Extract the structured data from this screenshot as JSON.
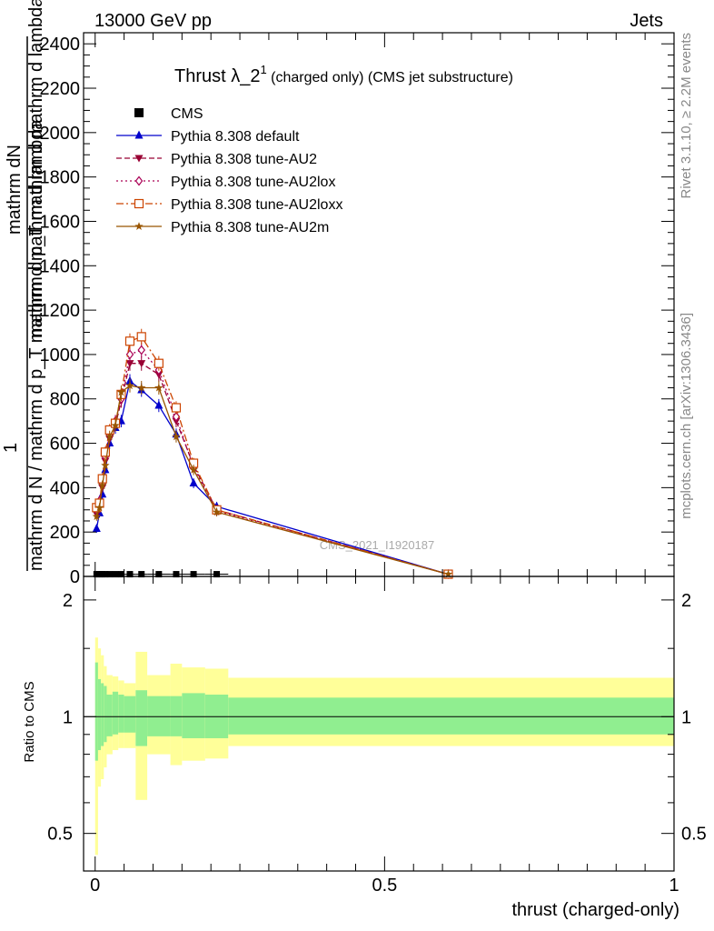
{
  "header": {
    "left": "13000 GeV pp",
    "right": "Jets"
  },
  "side_labels": {
    "rivet": "Rivet 3.1.10, ≥ 2.2M events",
    "mcplots": "mcplots.cern.ch [arXiv:1306.3436]"
  },
  "watermark": "CMS_2021_I1920187",
  "chart_data": [
    {
      "type": "line",
      "title_main": "Thrust λ_2",
      "title_sup": "1",
      "title_rest": " (charged only) (CMS jet substructure)",
      "ylabel_top": "mathrm dN",
      "ylabel_top2": "mathrm d p_T mathrm d  mathrm d lambda",
      "ylabel_one": "1",
      "ylabel_bottom": "mathrm d N / mathrm d p_T mathrm d  mathrm d lambda",
      "ylim": [
        0,
        2450
      ],
      "xlim": [
        -0.02,
        1.0
      ],
      "yticks": [
        0,
        200,
        400,
        600,
        800,
        1000,
        1200,
        1400,
        1600,
        1800,
        2000,
        2200,
        2400
      ],
      "legend_position": "top-left",
      "series": [
        {
          "name": "CMS",
          "color": "#000000",
          "marker": "square",
          "dash": "none",
          "x": [
            0.0025,
            0.0075,
            0.0125,
            0.0175,
            0.025,
            0.035,
            0.045,
            0.06,
            0.08,
            0.11,
            0.14,
            0.17,
            0.21
          ],
          "y": [
            10,
            10,
            10,
            10,
            10,
            10,
            10,
            10,
            10,
            10,
            10,
            10,
            10
          ]
        },
        {
          "name": "Pythia 8.308 default",
          "color": "#0000cc",
          "marker": "triangle-up",
          "dash": "none",
          "x": [
            0.0025,
            0.0075,
            0.0125,
            0.0175,
            0.025,
            0.035,
            0.045,
            0.06,
            0.08,
            0.11,
            0.14,
            0.17,
            0.21,
            0.61
          ],
          "y": [
            215,
            285,
            370,
            480,
            600,
            670,
            700,
            880,
            840,
            770,
            640,
            420,
            315,
            10
          ]
        },
        {
          "name": "Pythia 8.308 tune-AU2",
          "color": "#990033",
          "marker": "triangle-down",
          "dash": "6,3",
          "x": [
            0.0025,
            0.0075,
            0.0125,
            0.0175,
            0.025,
            0.035,
            0.045,
            0.06,
            0.08,
            0.11,
            0.14,
            0.17,
            0.21,
            0.61
          ],
          "y": [
            280,
            330,
            400,
            520,
            620,
            680,
            790,
            960,
            960,
            910,
            700,
            500,
            300,
            10
          ]
        },
        {
          "name": "Pythia 8.308 tune-AU2lox",
          "color": "#aa0055",
          "marker": "diamond-open",
          "dash": "2,3",
          "x": [
            0.0025,
            0.0075,
            0.0125,
            0.0175,
            0.025,
            0.035,
            0.045,
            0.06,
            0.08,
            0.11,
            0.14,
            0.17,
            0.21,
            0.61
          ],
          "y": [
            300,
            340,
            420,
            540,
            640,
            700,
            800,
            1000,
            1020,
            930,
            720,
            490,
            295,
            10
          ]
        },
        {
          "name": "Pythia 8.308 tune-AU2loxx",
          "color": "#cc4400",
          "marker": "square-open",
          "dash": "8,3,2,3",
          "x": [
            0.0025,
            0.0075,
            0.0125,
            0.0175,
            0.025,
            0.035,
            0.045,
            0.06,
            0.08,
            0.11,
            0.14,
            0.17,
            0.21,
            0.61
          ],
          "y": [
            310,
            330,
            440,
            560,
            660,
            690,
            820,
            1060,
            1080,
            960,
            760,
            510,
            300,
            10
          ]
        },
        {
          "name": "Pythia 8.308 tune-AU2m",
          "color": "#995500",
          "marker": "star",
          "dash": "none",
          "x": [
            0.0025,
            0.0075,
            0.0125,
            0.0175,
            0.025,
            0.035,
            0.045,
            0.06,
            0.08,
            0.11,
            0.14,
            0.17,
            0.21,
            0.61
          ],
          "y": [
            270,
            310,
            410,
            500,
            630,
            680,
            830,
            860,
            850,
            850,
            630,
            480,
            290,
            10
          ]
        }
      ]
    },
    {
      "type": "area",
      "ylabel": "Ratio to CMS",
      "xlabel": "thrust (charged-only)",
      "ylim": [
        0.4,
        2.3
      ],
      "xlim": [
        -0.02,
        1.0
      ],
      "xticks": [
        0,
        0.5,
        1
      ],
      "xtick_labels": [
        "0",
        "0.5",
        "1"
      ],
      "yticks": [
        0.5,
        1,
        2
      ],
      "ytick_labels": [
        "0.5",
        "1",
        "2"
      ],
      "log_y": true,
      "band_colors": {
        "inner": "#90ee90",
        "outer": "#ffff99"
      },
      "bins": [
        0.0,
        0.005,
        0.01,
        0.015,
        0.02,
        0.03,
        0.04,
        0.05,
        0.07,
        0.09,
        0.13,
        0.15,
        0.19,
        0.23,
        1.0
      ],
      "inner_up": [
        1.38,
        1.25,
        1.22,
        1.2,
        1.14,
        1.16,
        1.14,
        1.13,
        1.17,
        1.13,
        1.13,
        1.15,
        1.14,
        1.12
      ],
      "inner_down": [
        0.77,
        0.82,
        0.84,
        0.86,
        0.89,
        0.9,
        0.91,
        0.91,
        0.84,
        0.89,
        0.89,
        0.88,
        0.88,
        0.9
      ],
      "outer_up": [
        1.6,
        1.5,
        1.44,
        1.35,
        1.28,
        1.27,
        1.24,
        1.22,
        1.47,
        1.28,
        1.37,
        1.34,
        1.33,
        1.26
      ],
      "outer_down": [
        0.44,
        0.66,
        0.69,
        0.74,
        0.8,
        0.82,
        0.83,
        0.83,
        0.61,
        0.8,
        0.75,
        0.77,
        0.78,
        0.84
      ],
      "reference_y": 1
    }
  ]
}
